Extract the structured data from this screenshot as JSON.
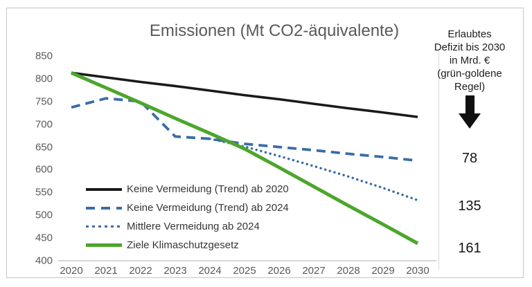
{
  "colors": {
    "trend_2020_line": "#1a1a1a",
    "trend_2024_line": "#3a6ca8",
    "mittlere_vermeidung_line": "#3a6ca8",
    "klimaschutzgesetz_line": "#4ca62c",
    "title_text": "#595959",
    "axis_text": "#595959",
    "baseline": "#bfbfbf",
    "frame_border": "#c6c6c6"
  },
  "chart_data": {
    "type": "line",
    "title": "Emissionen (Mt CO2-äquivalente)",
    "xlabel": "",
    "ylabel": "",
    "xlim": [
      2020,
      2030
    ],
    "ylim": [
      400,
      850
    ],
    "x_ticks": [
      "2020",
      "2021",
      "2022",
      "2023",
      "2024",
      "2025",
      "2026",
      "2027",
      "2028",
      "2029",
      "2030"
    ],
    "y_ticks": [
      "850",
      "800",
      "750",
      "700",
      "650",
      "600",
      "550",
      "500",
      "450",
      "400"
    ],
    "grid": false,
    "legend_position": "inside-lower-left",
    "series": [
      {
        "name": "Keine Vermeidung (Trend) ab 2020",
        "style": "solid",
        "color": "#1a1a1a",
        "width": 3.6,
        "x": [
          2020,
          2021,
          2022,
          2023,
          2024,
          2025,
          2026,
          2027,
          2028,
          2029,
          2030
        ],
        "values": [
          813,
          803,
          793,
          784,
          774,
          764,
          755,
          745,
          735,
          726,
          716
        ]
      },
      {
        "name": "Keine Vermeidung (Trend) ab 2024",
        "style": "dashed",
        "color": "#3a6ca8",
        "width": 3.8,
        "x": [
          2020,
          2021,
          2022,
          2023,
          2024,
          2025,
          2026,
          2027,
          2028,
          2029,
          2030
        ],
        "values": [
          737,
          757,
          750,
          673,
          668,
          657,
          650,
          643,
          635,
          628,
          620
        ]
      },
      {
        "name": "Mittlere Vermeidung ab 2024",
        "style": "dotted",
        "color": "#3a6ca8",
        "width": 3.5,
        "x": [
          2024,
          2025,
          2026,
          2027,
          2028,
          2029,
          2030
        ],
        "values": [
          668,
          651,
          630,
          608,
          585,
          560,
          533
        ]
      },
      {
        "name": "Ziele Klimaschutzgesetz",
        "style": "solid",
        "color": "#4ca62c",
        "width": 5,
        "x": [
          2020,
          2021,
          2022,
          2023,
          2024,
          2025,
          2026,
          2027,
          2028,
          2029,
          2030
        ],
        "values": [
          813,
          780,
          747,
          713,
          680,
          646,
          605,
          563,
          521,
          480,
          438
        ]
      }
    ]
  },
  "right_panel": {
    "header_lines": [
      "Erlaubtes",
      "Defizit bis 2030",
      "in Mrd. €",
      "(grün-goldene",
      "Regel)"
    ],
    "arrow_icon": "down-arrow",
    "values": [
      "78",
      "135",
      "161"
    ]
  }
}
